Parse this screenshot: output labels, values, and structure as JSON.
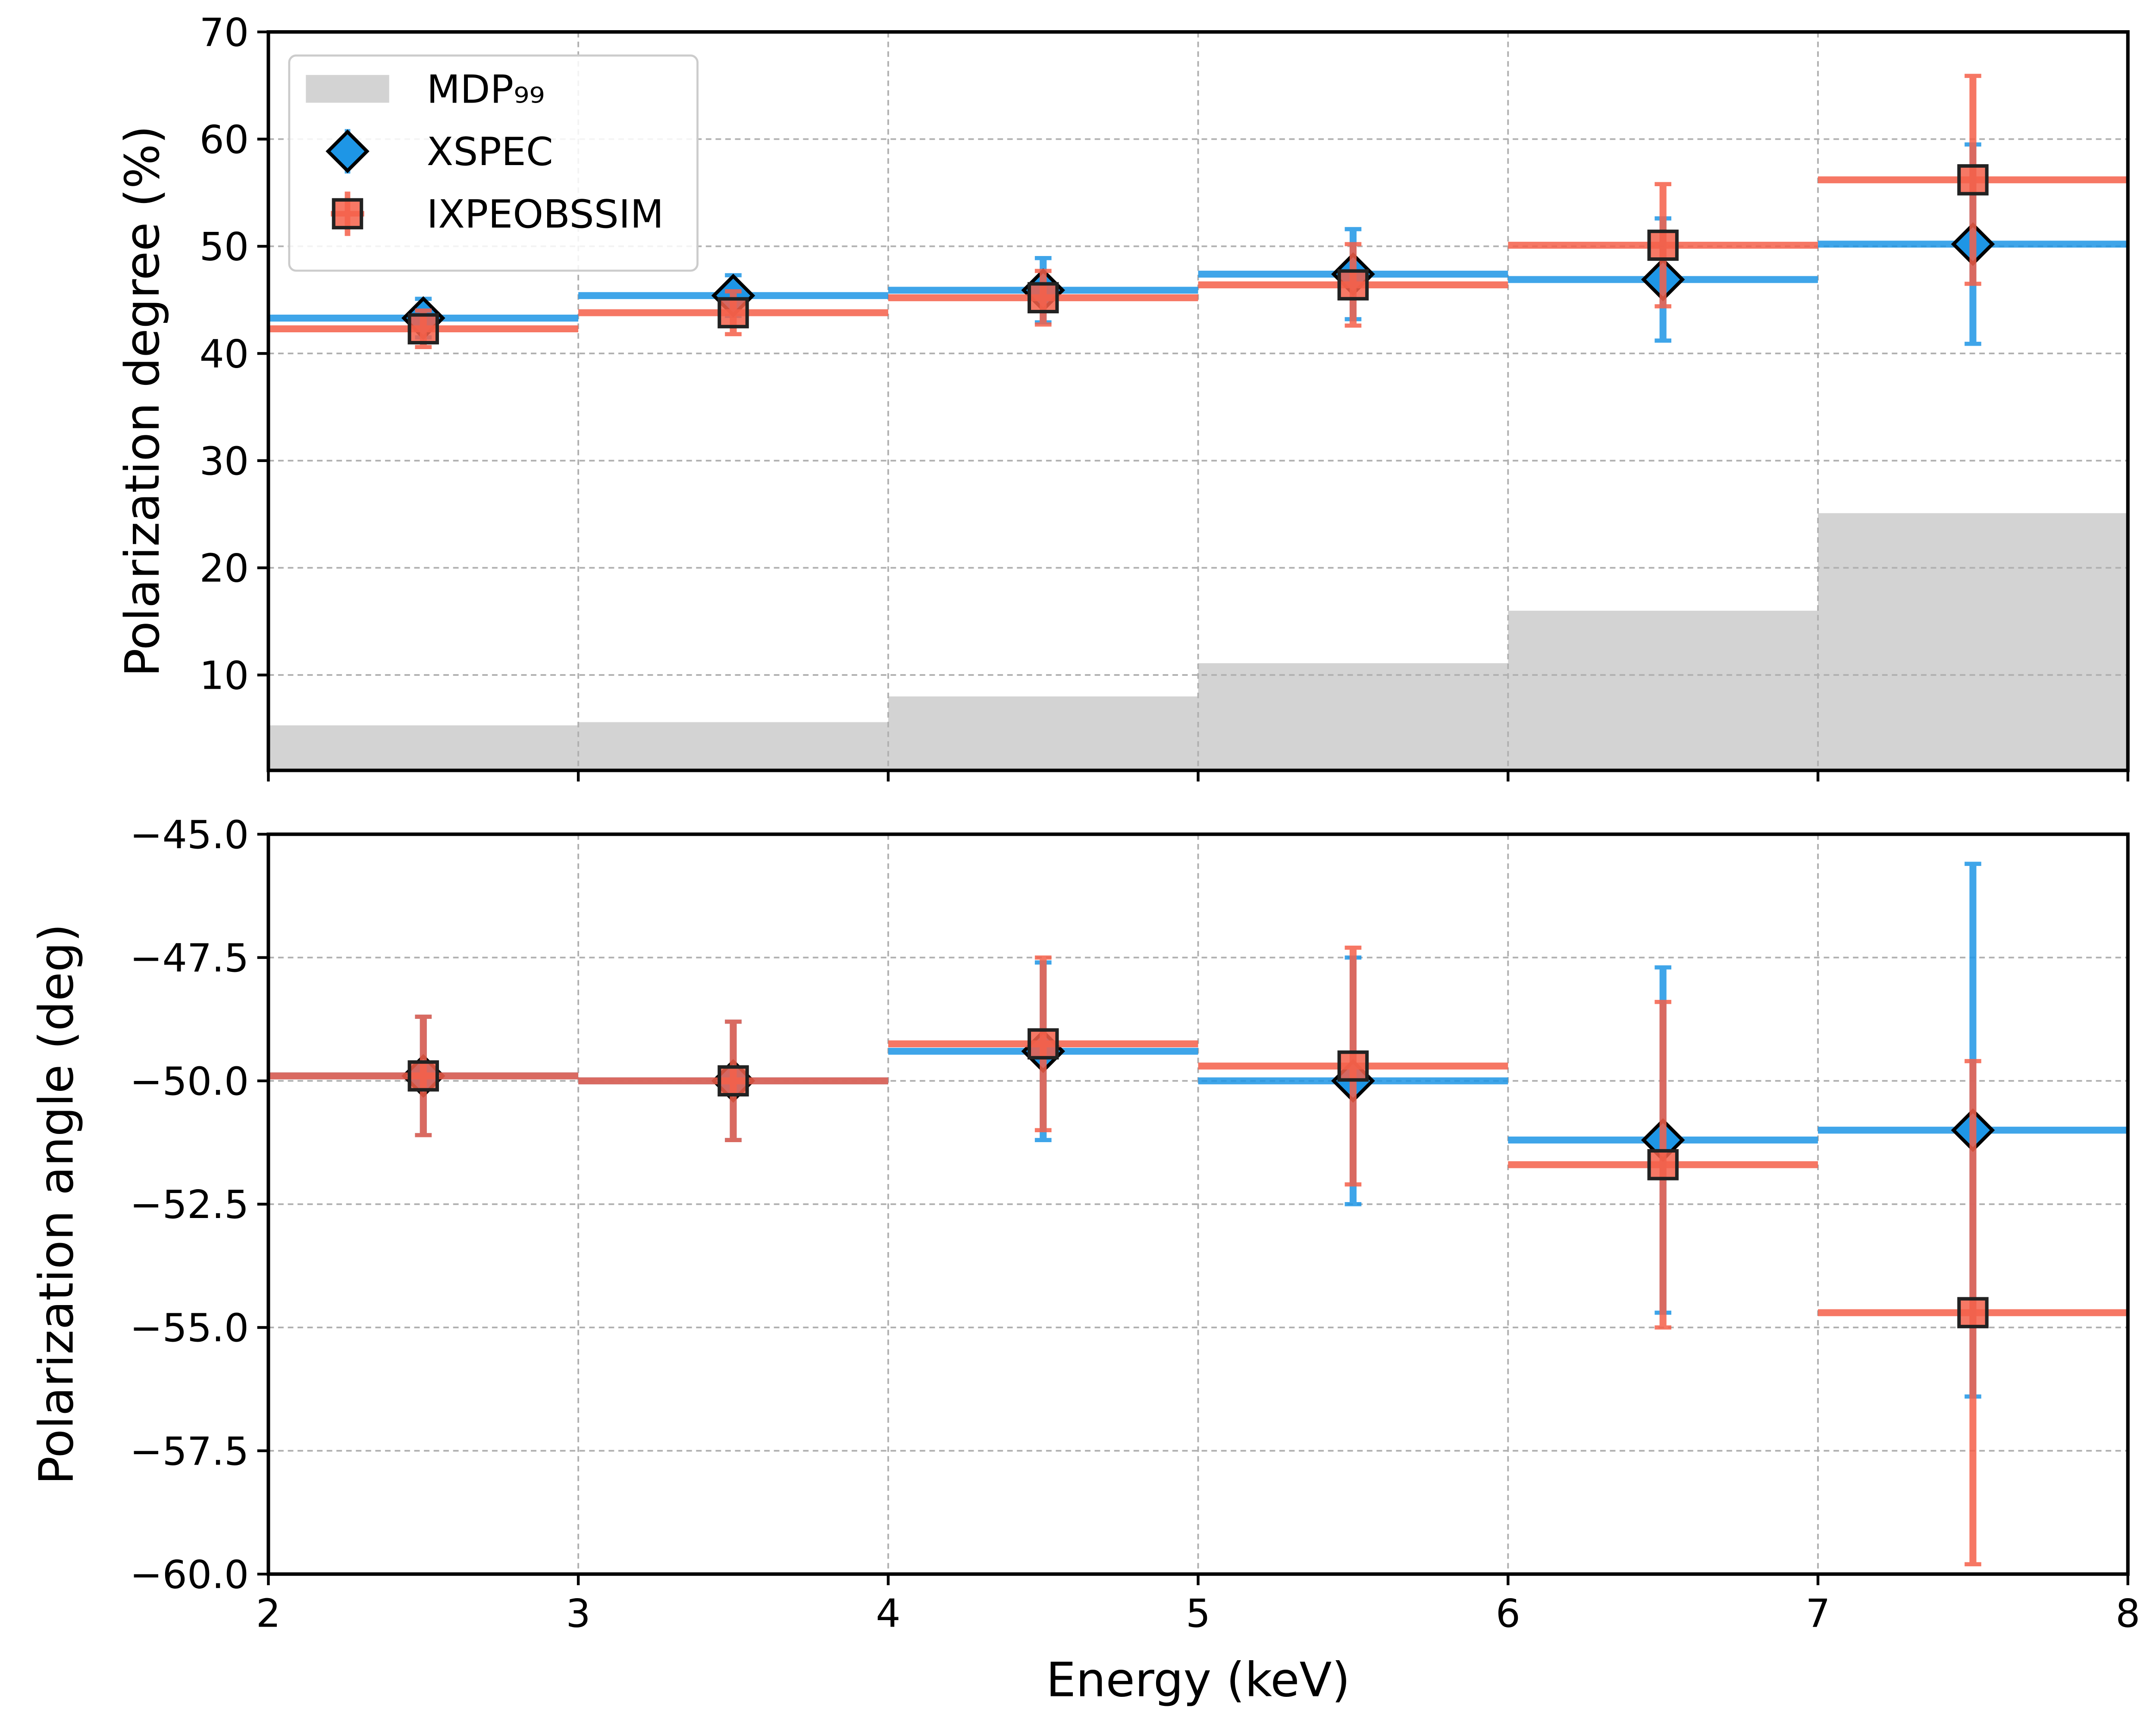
{
  "chart_data": [
    {
      "type": "errorbar",
      "ylabel": "Polarization degree (%)",
      "xlim": [
        2,
        8
      ],
      "ylim": [
        1.1,
        70
      ],
      "yticks": [
        10,
        20,
        30,
        40,
        50,
        60,
        70
      ],
      "grid": true,
      "legend": "upper left",
      "x": [
        2.5,
        3.5,
        4.5,
        5.5,
        6.5,
        7.5
      ],
      "xerr": 0.5,
      "series": [
        {
          "name": "MDP₉₉",
          "kind": "area",
          "color": "#d3d3d3",
          "values": [
            5.3,
            5.6,
            8.0,
            11.1,
            16.0,
            25.1
          ]
        },
        {
          "name": "XSPEC",
          "kind": "errorbar",
          "marker": "diamond",
          "color": "#1e96e6",
          "values": [
            43.3,
            45.4,
            45.9,
            47.4,
            46.9,
            50.2
          ],
          "errors": [
            1.8,
            1.9,
            3.0,
            4.2,
            5.7,
            9.3
          ]
        },
        {
          "name": "IXPEOBSSIM",
          "kind": "errorbar",
          "marker": "square",
          "color": "#f5604a",
          "values": [
            42.3,
            43.8,
            45.2,
            46.4,
            50.1,
            56.2
          ],
          "errors": [
            1.7,
            2.0,
            2.5,
            3.8,
            5.7,
            9.7
          ]
        }
      ]
    },
    {
      "type": "errorbar",
      "ylabel": "Polarization angle (deg)",
      "xlabel": "Energy (keV)",
      "xlim": [
        2,
        8
      ],
      "xticks": [
        2,
        3,
        4,
        5,
        6,
        7,
        8
      ],
      "ylim": [
        -60,
        -45
      ],
      "yticks": [
        {
          "value": -60,
          "label": "−60.0"
        },
        {
          "value": -57.5,
          "label": "−57.5"
        },
        {
          "value": -55,
          "label": "−55.0"
        },
        {
          "value": -52.5,
          "label": "−52.5"
        },
        {
          "value": -50,
          "label": "−50.0"
        },
        {
          "value": -47.5,
          "label": "−47.5"
        },
        {
          "value": -45,
          "label": "−45.0"
        }
      ],
      "grid": true,
      "x": [
        2.5,
        3.5,
        4.5,
        5.5,
        6.5,
        7.5
      ],
      "xerr": 0.5,
      "series": [
        {
          "kind": "errorbar",
          "marker": "diamond",
          "color": "#1e96e6",
          "values": [
            -49.9,
            -50.0,
            -49.4,
            -50.0,
            -51.2,
            -51.0
          ],
          "errors": [
            1.2,
            1.2,
            1.8,
            2.5,
            3.5,
            5.4
          ]
        },
        {
          "kind": "errorbar",
          "marker": "square",
          "color": "#f5604a",
          "values": [
            -49.9,
            -50.0,
            -49.25,
            -49.7,
            -51.7,
            -54.7
          ],
          "errors": [
            1.2,
            1.2,
            1.75,
            2.4,
            3.3,
            5.1
          ]
        }
      ]
    }
  ]
}
